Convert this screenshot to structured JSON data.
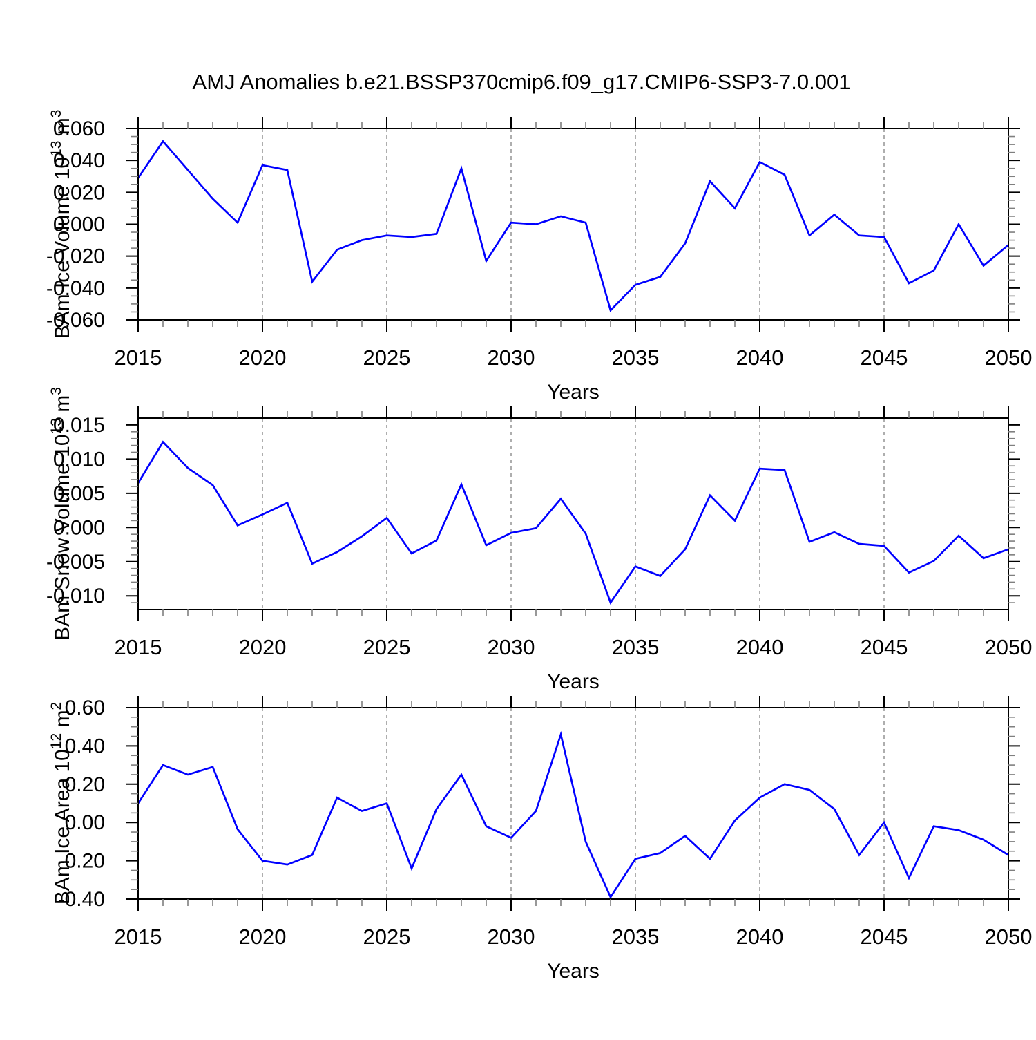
{
  "title": "AMJ Anomalies b.e21.BSSP370cmip6.f09_g17.CMIP6-SSP3-7.0.001",
  "chart_data": [
    {
      "type": "line",
      "name": "bam-ice-volume",
      "ylabel": "BAm Ice Volume 10^13 m^3",
      "ylabel_parts": [
        {
          "text": "BAm Ice Volume 10"
        },
        {
          "text": "13",
          "sup": true
        },
        {
          "text": " m"
        },
        {
          "text": "3",
          "sup": true
        }
      ],
      "xlabel": "Years",
      "line_color": "#0000ff",
      "ylim": [
        -0.06,
        0.06
      ],
      "y_major_ticks": [
        0.06,
        0.04,
        0.02,
        0.0,
        -0.02,
        -0.04,
        -0.06
      ],
      "y_tick_labels": [
        "0.060",
        "0.040",
        "0.020",
        "0.000",
        "-0.020",
        "-0.040",
        "-0.060"
      ],
      "y_minor_step": 0.005,
      "x_major_ticks": [
        2015,
        2020,
        2025,
        2030,
        2035,
        2040,
        2045,
        2050
      ],
      "x_tick_labels": [
        "2015",
        "2020",
        "2025",
        "2030",
        "2035",
        "2040",
        "2045",
        "2050"
      ],
      "x_minor_step": 1,
      "grid_years": [
        2020,
        2025,
        2030,
        2035,
        2040,
        2045
      ],
      "x": [
        2015,
        2016,
        2017,
        2018,
        2019,
        2020,
        2021,
        2022,
        2023,
        2024,
        2025,
        2026,
        2027,
        2028,
        2029,
        2030,
        2031,
        2032,
        2033,
        2034,
        2035,
        2036,
        2037,
        2038,
        2039,
        2040,
        2041,
        2042,
        2043,
        2044,
        2045,
        2046,
        2047,
        2048,
        2049,
        2050
      ],
      "values": [
        0.029,
        0.052,
        0.034,
        0.016,
        0.001,
        0.037,
        0.034,
        -0.036,
        -0.016,
        -0.01,
        -0.007,
        -0.008,
        -0.006,
        0.035,
        -0.023,
        0.001,
        0.0,
        0.005,
        0.001,
        -0.054,
        -0.038,
        -0.033,
        -0.012,
        0.027,
        0.01,
        0.039,
        0.031,
        -0.007,
        0.006,
        -0.007,
        -0.008,
        -0.037,
        -0.029,
        0.0,
        -0.026,
        -0.013
      ]
    },
    {
      "type": "line",
      "name": "bam-snow-volume",
      "ylabel": "BAm Snow Volume 10^13 m^3",
      "ylabel_parts": [
        {
          "text": "BAm Snow Volume 10"
        },
        {
          "text": "13",
          "sup": true
        },
        {
          "text": " m"
        },
        {
          "text": "3",
          "sup": true
        }
      ],
      "xlabel": "Years",
      "line_color": "#0000ff",
      "ylim": [
        -0.012,
        0.016
      ],
      "y_major_ticks": [
        0.015,
        0.01,
        0.005,
        0.0,
        -0.005,
        -0.01
      ],
      "y_tick_labels": [
        "0.015",
        "0.010",
        "0.005",
        "0.000",
        "-0.005",
        "-0.010"
      ],
      "y_minor_step": 0.001,
      "x_major_ticks": [
        2015,
        2020,
        2025,
        2030,
        2035,
        2040,
        2045,
        2050
      ],
      "x_tick_labels": [
        "2015",
        "2020",
        "2025",
        "2030",
        "2035",
        "2040",
        "2045",
        "2050"
      ],
      "x_minor_step": 1,
      "grid_years": [
        2020,
        2025,
        2030,
        2035,
        2040,
        2045
      ],
      "x": [
        2015,
        2016,
        2017,
        2018,
        2019,
        2020,
        2021,
        2022,
        2023,
        2024,
        2025,
        2026,
        2027,
        2028,
        2029,
        2030,
        2031,
        2032,
        2033,
        2034,
        2035,
        2036,
        2037,
        2038,
        2039,
        2040,
        2041,
        2042,
        2043,
        2044,
        2045,
        2046,
        2047,
        2048,
        2049,
        2050
      ],
      "values": [
        0.0065,
        0.0125,
        0.0087,
        0.0062,
        0.0003,
        0.0019,
        0.0036,
        -0.0053,
        -0.0036,
        -0.0013,
        0.0014,
        -0.0038,
        -0.0019,
        0.0063,
        -0.0026,
        -0.0008,
        -0.0001,
        0.0042,
        -0.0009,
        -0.011,
        -0.0057,
        -0.0071,
        -0.0032,
        0.0047,
        0.001,
        0.0086,
        0.0084,
        -0.0021,
        -0.0007,
        -0.0024,
        -0.0027,
        -0.0066,
        -0.0049,
        -0.0012,
        -0.0045,
        -0.0032
      ]
    },
    {
      "type": "line",
      "name": "bam-ice-area",
      "ylabel": "BAm Ice Area 10^12 m^2",
      "ylabel_parts": [
        {
          "text": "BAm Ice Area 10"
        },
        {
          "text": "12",
          "sup": true
        },
        {
          "text": " m"
        },
        {
          "text": "2",
          "sup": true
        }
      ],
      "xlabel": "Years",
      "line_color": "#0000ff",
      "ylim": [
        -0.4,
        0.6
      ],
      "y_major_ticks": [
        0.6,
        0.4,
        0.2,
        0.0,
        -0.2,
        -0.4
      ],
      "y_tick_labels": [
        "0.60",
        "0.40",
        "0.20",
        "0.00",
        "-0.20",
        "-0.40"
      ],
      "y_minor_step": 0.05,
      "x_major_ticks": [
        2015,
        2020,
        2025,
        2030,
        2035,
        2040,
        2045,
        2050
      ],
      "x_tick_labels": [
        "2015",
        "2020",
        "2025",
        "2030",
        "2035",
        "2040",
        "2045",
        "2050"
      ],
      "x_minor_step": 1,
      "grid_years": [
        2020,
        2025,
        2030,
        2035,
        2040,
        2045
      ],
      "x": [
        2015,
        2016,
        2017,
        2018,
        2019,
        2020,
        2021,
        2022,
        2023,
        2024,
        2025,
        2026,
        2027,
        2028,
        2029,
        2030,
        2031,
        2032,
        2033,
        2034,
        2035,
        2036,
        2037,
        2038,
        2039,
        2040,
        2041,
        2042,
        2043,
        2044,
        2045,
        2046,
        2047,
        2048,
        2049,
        2050
      ],
      "values": [
        0.1,
        0.3,
        0.25,
        0.29,
        -0.035,
        -0.2,
        -0.22,
        -0.17,
        0.13,
        0.06,
        0.1,
        -0.24,
        0.07,
        0.25,
        -0.02,
        -0.08,
        0.06,
        0.46,
        -0.1,
        -0.39,
        -0.19,
        -0.16,
        -0.07,
        -0.19,
        0.01,
        0.13,
        0.2,
        0.17,
        0.07,
        -0.17,
        0.0,
        -0.29,
        -0.02,
        -0.04,
        -0.09,
        -0.17
      ]
    }
  ]
}
